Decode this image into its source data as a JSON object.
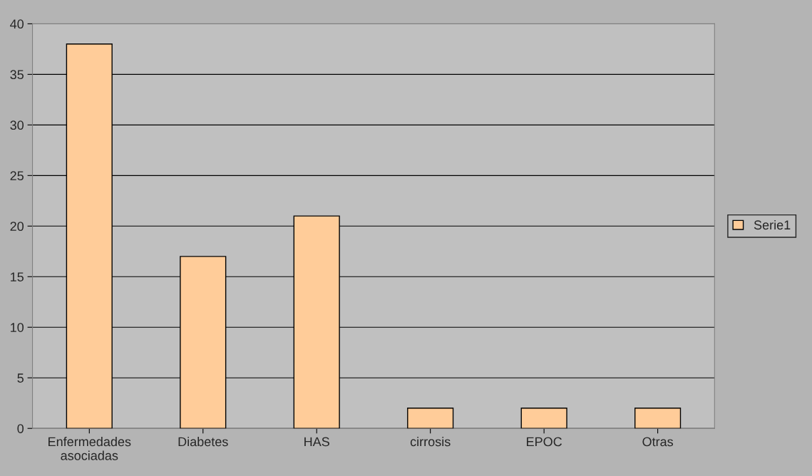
{
  "chart_data": {
    "type": "bar",
    "categories": [
      "Enfermedades\nasociadas",
      "Diabetes",
      "HAS",
      "cirrosis",
      "EPOC",
      "Otras"
    ],
    "series": [
      {
        "name": "Serie1",
        "color": "#ffcc99",
        "values": [
          38,
          17,
          21,
          2,
          2,
          2
        ]
      }
    ],
    "ylim": [
      0,
      40
    ],
    "yticks": [
      0,
      5,
      10,
      15,
      20,
      25,
      30,
      35,
      40
    ],
    "grid": "y",
    "legend": "right"
  }
}
